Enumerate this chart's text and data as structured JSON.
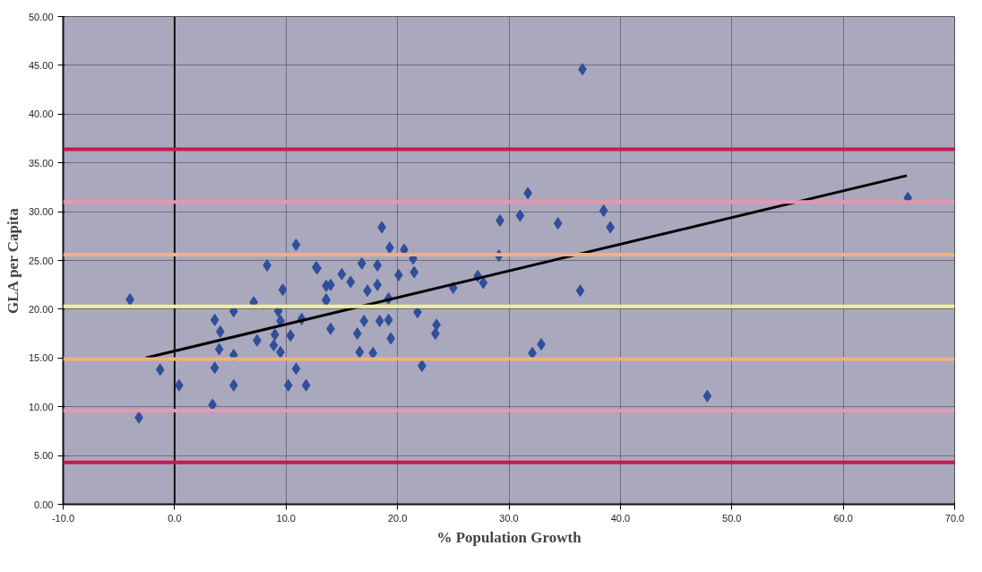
{
  "chart_data": {
    "type": "scatter",
    "xlabel": "% Population Growth",
    "ylabel": "GLA per Capita",
    "xlim": [
      -10,
      70
    ],
    "ylim": [
      0,
      50
    ],
    "xticks": [
      {
        "value": -10,
        "label": "-10.0"
      },
      {
        "value": 0,
        "label": "0.0"
      },
      {
        "value": 10,
        "label": "10.0"
      },
      {
        "value": 20,
        "label": "20.0"
      },
      {
        "value": 30,
        "label": "30.0"
      },
      {
        "value": 40,
        "label": "40.0"
      },
      {
        "value": 50,
        "label": "50.0"
      },
      {
        "value": 60,
        "label": "60.0"
      },
      {
        "value": 70,
        "label": "70.0"
      }
    ],
    "yticks": [
      {
        "value": 0,
        "label": "0.00"
      },
      {
        "value": 5,
        "label": "5.00"
      },
      {
        "value": 10,
        "label": "10.00"
      },
      {
        "value": 15,
        "label": "15.00"
      },
      {
        "value": 20,
        "label": "20.00"
      },
      {
        "value": 25,
        "label": "25.00"
      },
      {
        "value": 30,
        "label": "30.00"
      },
      {
        "value": 35,
        "label": "35.00"
      },
      {
        "value": 40,
        "label": "40.00"
      },
      {
        "value": 45,
        "label": "45.00"
      },
      {
        "value": 50,
        "label": "50.00"
      }
    ],
    "grid": true,
    "series": [
      {
        "marker": "diamond",
        "color": "#2f4f9a",
        "x": [
          -4.0,
          -3.2,
          -1.3,
          0.4,
          3.4,
          3.6,
          4.0,
          5.3,
          5.3,
          3.6,
          4.1,
          7.1,
          5.3,
          7.4,
          8.3,
          9.7,
          9.0,
          8.9,
          9.5,
          10.4,
          10.2,
          11.8,
          10.9,
          10.9,
          12.7,
          13.6,
          13.6,
          9.3,
          9.5,
          11.4,
          18.6,
          19.3,
          20.6,
          21.4,
          12.8,
          15.0,
          16.8,
          18.2,
          15.8,
          14.0,
          17.3,
          18.2,
          20.1,
          21.5,
          13.6,
          19.2,
          27.2,
          27.7,
          25.0,
          21.8,
          17.0,
          18.4,
          19.2,
          14.0,
          16.4,
          19.4,
          23.5,
          23.4,
          16.6,
          17.8,
          22.2,
          36.6,
          31.7,
          29.2,
          31.0,
          34.4,
          38.5,
          39.1,
          29.1,
          36.4,
          32.9,
          32.1,
          47.8,
          65.8
        ],
        "values": [
          21.0,
          8.9,
          13.8,
          12.2,
          10.2,
          14.0,
          15.9,
          15.3,
          12.2,
          18.9,
          17.7,
          20.7,
          19.8,
          16.8,
          24.5,
          22.0,
          17.4,
          16.3,
          15.6,
          17.3,
          12.2,
          12.2,
          13.9,
          26.6,
          24.3,
          22.4,
          21.0,
          19.8,
          18.8,
          19.0,
          28.4,
          26.3,
          26.1,
          25.2,
          24.2,
          23.6,
          24.7,
          24.5,
          22.8,
          22.5,
          21.9,
          22.5,
          23.5,
          23.8,
          20.9,
          21.1,
          23.4,
          22.7,
          22.2,
          19.7,
          18.8,
          18.8,
          18.9,
          18.0,
          17.5,
          17.0,
          18.4,
          17.5,
          15.6,
          15.5,
          14.2,
          44.6,
          31.9,
          29.1,
          29.6,
          28.8,
          30.1,
          28.4,
          25.5,
          21.9,
          16.4,
          15.5,
          11.1,
          31.4
        ]
      },
      {
        "type": "line",
        "color": "#000000",
        "x": [
          -2.6,
          65.7
        ],
        "values": [
          15.0,
          33.7
        ]
      }
    ],
    "ref_lines": [
      {
        "axis": "x",
        "value": 0,
        "color": "#111111"
      },
      {
        "axis": "y",
        "value": 36.4,
        "color": "#c8174f"
      },
      {
        "axis": "y",
        "value": 31.0,
        "color": "#e996b0"
      },
      {
        "axis": "y",
        "value": 25.6,
        "color": "#f0b27a"
      },
      {
        "axis": "y",
        "value": 20.3,
        "color": "#eef0a0"
      },
      {
        "axis": "y",
        "value": 14.9,
        "color": "#f0b27a"
      },
      {
        "axis": "y",
        "value": 9.6,
        "color": "#e996b0"
      },
      {
        "axis": "y",
        "value": 4.3,
        "color": "#c8174f"
      }
    ]
  }
}
